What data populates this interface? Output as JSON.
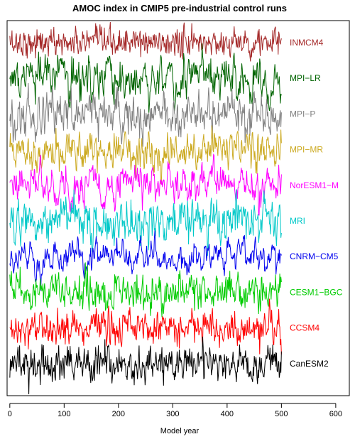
{
  "chart_data": {
    "type": "line",
    "title": "AMOC index in CMIP5 pre-industrial control runs",
    "xlabel": "Model year",
    "ylabel": "",
    "xlim": [
      -5,
      625
    ],
    "x_ticks": [
      0,
      100,
      200,
      300,
      400,
      500,
      600
    ],
    "x_tick_labels": [
      "0",
      "100",
      "200",
      "300",
      "400",
      "500",
      "600"
    ],
    "grid": false,
    "legend": "direct-labels-right",
    "n_years": 500,
    "series": [
      {
        "name": "INMCM4",
        "color": "#a52a2a",
        "amplitude": 0.55,
        "persistence": 0.2
      },
      {
        "name": "MPI−LR",
        "color": "#006400",
        "amplitude": 0.9,
        "persistence": 0.55
      },
      {
        "name": "MPI−P",
        "color": "#808080",
        "amplitude": 0.9,
        "persistence": 0.5
      },
      {
        "name": "MPI−MR",
        "color": "#ccaa22",
        "amplitude": 0.8,
        "persistence": 0.5
      },
      {
        "name": "NorESM1−M",
        "color": "#ff00ff",
        "amplitude": 0.85,
        "persistence": 0.65
      },
      {
        "name": "MRI",
        "color": "#00c8c8",
        "amplitude": 0.85,
        "persistence": 0.4
      },
      {
        "name": "CNRM−CM5",
        "color": "#0000ee",
        "amplitude": 0.7,
        "persistence": 0.7
      },
      {
        "name": "CESM1−BGC",
        "color": "#00cc00",
        "amplitude": 0.75,
        "persistence": 0.45
      },
      {
        "name": "CCSM4",
        "color": "#ff0000",
        "amplitude": 0.65,
        "persistence": 0.3
      },
      {
        "name": "CanESM2",
        "color": "#000000",
        "amplitude": 0.7,
        "persistence": 0.3
      }
    ]
  }
}
